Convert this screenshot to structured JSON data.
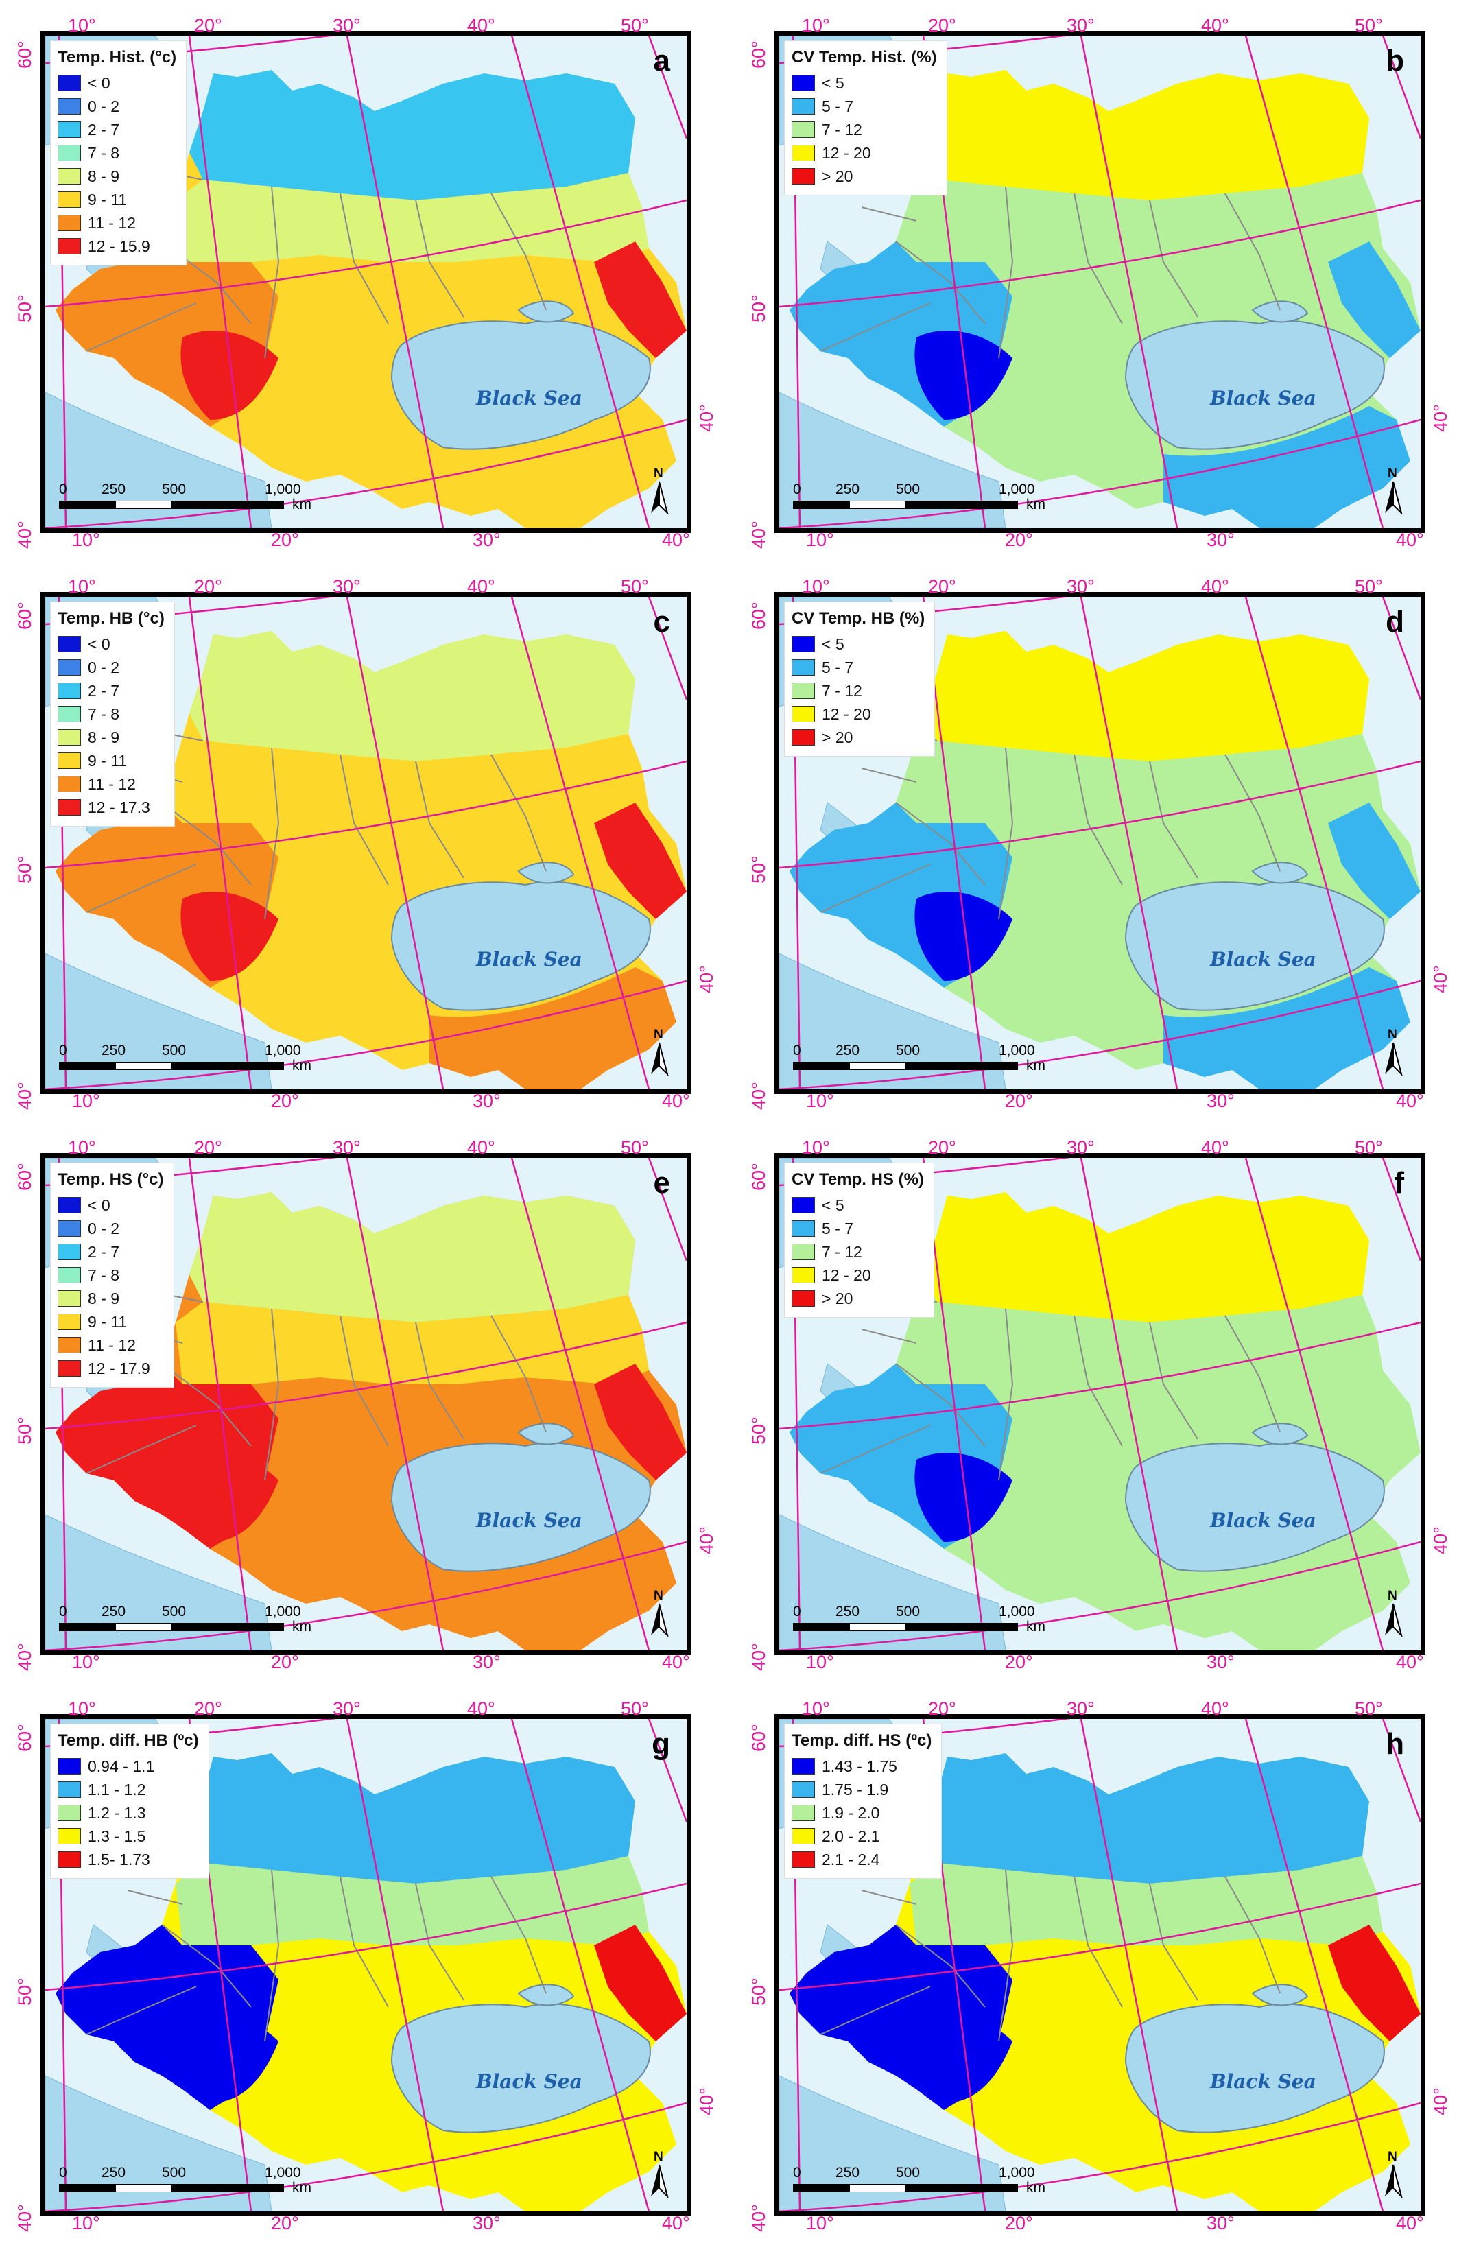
{
  "map_common": {
    "sea_label": "Black Sea",
    "scale_labels": [
      "0",
      "250",
      "500",
      "1,000"
    ],
    "scale_unit": "km",
    "north_label": "N",
    "top_ticks": [
      "10°",
      "20°",
      "30°",
      "40°",
      "50°"
    ],
    "bottom_ticks": [
      "10°",
      "20°",
      "30°",
      "40°"
    ],
    "left_ticks": [
      "60°",
      "50°",
      "40°"
    ],
    "right_tick": "40°",
    "colors": {
      "water": "#a8d8ee",
      "background": "#e2f4fa",
      "grid": "#e0189e",
      "border": "#8a8a8a"
    }
  },
  "panels": [
    {
      "letter": "a",
      "legend_title": "Temp. Hist. (°c)",
      "legend": [
        {
          "label": "< 0",
          "color": "#0a14d8"
        },
        {
          "label": "0 - 2",
          "color": "#3c82e6"
        },
        {
          "label": "2 - 7",
          "color": "#38c6f0"
        },
        {
          "label": "7 - 8",
          "color": "#8ef0c4"
        },
        {
          "label": "8 - 9",
          "color": "#daf57a"
        },
        {
          "label": "9 - 11",
          "color": "#fdd82a"
        },
        {
          "label": "11 - 12",
          "color": "#f78c1e"
        },
        {
          "label": "12 - 15.9",
          "color": "#ee1c1c"
        }
      ]
    },
    {
      "letter": "b",
      "legend_title": "CV Temp. Hist. (%)",
      "legend": [
        {
          "label": "< 5",
          "color": "#0000ee"
        },
        {
          "label": "5 - 7",
          "color": "#38b4ee"
        },
        {
          "label": "7 - 12",
          "color": "#b4f09a"
        },
        {
          "label": "12 - 20",
          "color": "#fcf500"
        },
        {
          "label": "> 20",
          "color": "#ee1010"
        }
      ]
    },
    {
      "letter": "c",
      "legend_title": "Temp. HB (°c)",
      "legend": [
        {
          "label": "< 0",
          "color": "#0a14d8"
        },
        {
          "label": "0 - 2",
          "color": "#3c82e6"
        },
        {
          "label": "2 - 7",
          "color": "#38c6f0"
        },
        {
          "label": "7 - 8",
          "color": "#8ef0c4"
        },
        {
          "label": "8 - 9",
          "color": "#daf57a"
        },
        {
          "label": "9 - 11",
          "color": "#fdd82a"
        },
        {
          "label": "11 - 12",
          "color": "#f78c1e"
        },
        {
          "label": "12 - 17.3",
          "color": "#ee1c1c"
        }
      ]
    },
    {
      "letter": "d",
      "legend_title": "CV Temp. HB (%)",
      "legend": [
        {
          "label": "< 5",
          "color": "#0000ee"
        },
        {
          "label": "5 - 7",
          "color": "#38b4ee"
        },
        {
          "label": "7 - 12",
          "color": "#b4f09a"
        },
        {
          "label": "12 - 20",
          "color": "#fcf500"
        },
        {
          "label": "> 20",
          "color": "#ee1010"
        }
      ]
    },
    {
      "letter": "e",
      "legend_title": "Temp. HS (°c)",
      "legend": [
        {
          "label": "< 0",
          "color": "#0a14d8"
        },
        {
          "label": "0 - 2",
          "color": "#3c82e6"
        },
        {
          "label": "2 - 7",
          "color": "#38c6f0"
        },
        {
          "label": "7 - 8",
          "color": "#8ef0c4"
        },
        {
          "label": "8 - 9",
          "color": "#daf57a"
        },
        {
          "label": "9 - 11",
          "color": "#fdd82a"
        },
        {
          "label": "11 - 12",
          "color": "#f78c1e"
        },
        {
          "label": "12 - 17.9",
          "color": "#ee1c1c"
        }
      ]
    },
    {
      "letter": "f",
      "legend_title": "CV Temp. HS (%)",
      "legend": [
        {
          "label": "< 5",
          "color": "#0000ee"
        },
        {
          "label": "5 - 7",
          "color": "#38b4ee"
        },
        {
          "label": "7 - 12",
          "color": "#b4f09a"
        },
        {
          "label": "12 - 20",
          "color": "#fcf500"
        },
        {
          "label": "> 20",
          "color": "#ee1010"
        }
      ]
    },
    {
      "letter": "g",
      "legend_title": "Temp. diff. HB (ºc)",
      "legend": [
        {
          "label": "0.94 - 1.1",
          "color": "#0000ee"
        },
        {
          "label": "1.1 - 1.2",
          "color": "#38b4ee"
        },
        {
          "label": "1.2 - 1.3",
          "color": "#b4f09a"
        },
        {
          "label": "1.3 - 1.5",
          "color": "#fcf500"
        },
        {
          "label": "1.5- 1.73",
          "color": "#ee1010"
        }
      ]
    },
    {
      "letter": "h",
      "legend_title": "Temp. diff. HS (ºc)",
      "legend": [
        {
          "label": "1.43 - 1.75",
          "color": "#0000ee"
        },
        {
          "label": "1.75 - 1.9",
          "color": "#38b4ee"
        },
        {
          "label": "1.9 - 2.0",
          "color": "#b4f09a"
        },
        {
          "label": "2.0 - 2.1",
          "color": "#fcf500"
        },
        {
          "label": "2.1 - 2.4",
          "color": "#ee1010"
        }
      ]
    }
  ]
}
